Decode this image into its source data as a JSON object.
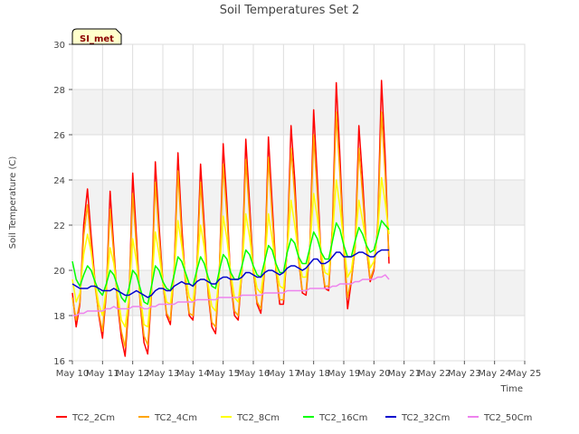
{
  "chart_data": {
    "type": "line",
    "title": "Soil Temperatures Set 2",
    "xlabel": "Time",
    "ylabel": "Soil Temperature (C)",
    "station_badge": "SI_met",
    "ylim": [
      16,
      30
    ],
    "yticks": [
      "16",
      "18",
      "20",
      "22",
      "24",
      "26",
      "28",
      "30"
    ],
    "xlim": [
      "May 10",
      "May 25"
    ],
    "xticks": [
      "May 10",
      "May 11",
      "May 12",
      "May 13",
      "May 14",
      "May 15",
      "May 16",
      "May 17",
      "May 18",
      "May 19",
      "May 20",
      "May 21",
      "May 22",
      "May 23",
      "May 24",
      "May 25"
    ],
    "grid": true,
    "legend_position": "bottom",
    "x_start_day": 10.0,
    "x_step_days": 0.125,
    "series": [
      {
        "name": "TC2_2Cm",
        "color": "#ff0000",
        "values": [
          19.0,
          17.5,
          18.5,
          22.0,
          23.6,
          21.5,
          19.5,
          18.0,
          17.0,
          19.0,
          23.5,
          21.0,
          18.5,
          17.0,
          16.2,
          18.5,
          24.3,
          21.5,
          18.5,
          16.8,
          16.3,
          19.0,
          24.8,
          22.0,
          19.5,
          18.0,
          17.6,
          20.0,
          25.2,
          22.0,
          19.5,
          18.0,
          17.8,
          20.0,
          24.7,
          22.0,
          19.0,
          17.5,
          17.2,
          20.0,
          25.6,
          23.0,
          19.5,
          18.0,
          17.8,
          20.0,
          25.8,
          23.0,
          20.0,
          18.5,
          18.1,
          20.0,
          25.9,
          23.0,
          20.0,
          18.5,
          18.5,
          21.0,
          26.4,
          24.0,
          20.5,
          19.0,
          18.9,
          21.0,
          27.1,
          24.0,
          20.5,
          19.2,
          19.1,
          22.0,
          28.3,
          25.0,
          21.0,
          18.3,
          19.5,
          21.0,
          26.4,
          24.0,
          21.0,
          19.5,
          20.0,
          22.0,
          28.4,
          25.0,
          20.3
        ]
      },
      {
        "name": "TC2_4Cm",
        "color": "#ffa500",
        "values": [
          18.8,
          17.8,
          18.6,
          21.5,
          22.9,
          21.0,
          19.3,
          18.1,
          17.3,
          19.1,
          22.7,
          20.7,
          18.6,
          17.3,
          16.6,
          18.7,
          23.4,
          21.0,
          18.6,
          17.1,
          16.7,
          19.1,
          23.9,
          21.5,
          19.5,
          18.1,
          17.8,
          20.0,
          24.4,
          21.5,
          19.5,
          18.1,
          18.0,
          20.0,
          23.9,
          21.5,
          19.1,
          17.7,
          17.5,
          20.0,
          24.7,
          22.4,
          19.6,
          18.2,
          18.0,
          20.0,
          24.9,
          22.4,
          20.0,
          18.6,
          18.3,
          20.1,
          25.0,
          22.4,
          20.0,
          18.7,
          18.7,
          21.0,
          25.4,
          23.3,
          20.5,
          19.1,
          19.1,
          21.0,
          26.0,
          23.3,
          20.5,
          19.3,
          19.3,
          21.9,
          27.0,
          24.2,
          21.0,
          18.8,
          19.6,
          21.0,
          25.4,
          23.3,
          21.0,
          19.6,
          20.1,
          21.9,
          27.0,
          24.2,
          20.6
        ]
      },
      {
        "name": "TC2_8Cm",
        "color": "#ffff00",
        "values": [
          19.6,
          18.6,
          19.0,
          20.7,
          21.6,
          20.8,
          19.5,
          18.5,
          18.0,
          19.2,
          21.0,
          20.3,
          19.0,
          17.8,
          17.5,
          18.8,
          21.4,
          20.4,
          18.9,
          17.6,
          17.5,
          19.2,
          21.7,
          20.7,
          19.5,
          18.6,
          18.5,
          19.9,
          22.2,
          21.1,
          19.8,
          18.8,
          18.6,
          20.0,
          22.0,
          21.0,
          19.4,
          18.4,
          18.2,
          19.9,
          22.4,
          21.4,
          19.9,
          18.8,
          18.6,
          20.1,
          22.5,
          21.5,
          20.1,
          19.2,
          19.0,
          20.2,
          22.5,
          21.4,
          20.2,
          19.3,
          19.2,
          20.9,
          23.1,
          22.0,
          20.7,
          19.7,
          19.7,
          21.0,
          23.4,
          22.3,
          20.8,
          19.9,
          19.8,
          21.5,
          24.0,
          22.8,
          21.2,
          19.7,
          20.0,
          21.2,
          23.1,
          22.2,
          21.2,
          20.1,
          20.4,
          21.7,
          24.1,
          23.0,
          21.6
        ]
      },
      {
        "name": "TC2_16Cm",
        "color": "#00ff00",
        "values": [
          20.4,
          19.6,
          19.3,
          19.8,
          20.2,
          20.0,
          19.5,
          19.1,
          18.9,
          19.4,
          20.0,
          19.8,
          19.3,
          18.8,
          18.6,
          19.2,
          20.0,
          19.8,
          19.2,
          18.6,
          18.5,
          19.3,
          20.2,
          20.0,
          19.5,
          19.2,
          19.1,
          19.8,
          20.6,
          20.4,
          19.9,
          19.4,
          19.3,
          20.0,
          20.6,
          20.3,
          19.7,
          19.3,
          19.2,
          20.0,
          20.7,
          20.5,
          19.9,
          19.6,
          19.6,
          20.2,
          20.9,
          20.7,
          20.2,
          19.8,
          19.7,
          20.4,
          21.1,
          20.9,
          20.3,
          19.9,
          19.9,
          20.8,
          21.4,
          21.2,
          20.6,
          20.3,
          20.3,
          21.0,
          21.7,
          21.4,
          20.8,
          20.5,
          20.5,
          21.3,
          22.1,
          21.8,
          21.1,
          20.6,
          20.6,
          21.3,
          21.9,
          21.6,
          21.1,
          20.8,
          20.9,
          21.5,
          22.2,
          22.0,
          21.8
        ]
      },
      {
        "name": "TC2_32Cm",
        "color": "#0000cd",
        "values": [
          19.4,
          19.3,
          19.2,
          19.2,
          19.2,
          19.3,
          19.3,
          19.2,
          19.1,
          19.1,
          19.1,
          19.2,
          19.1,
          19.0,
          18.9,
          18.9,
          19.0,
          19.1,
          19.0,
          18.9,
          18.8,
          18.9,
          19.1,
          19.2,
          19.2,
          19.1,
          19.1,
          19.3,
          19.4,
          19.5,
          19.4,
          19.4,
          19.3,
          19.5,
          19.6,
          19.6,
          19.5,
          19.4,
          19.4,
          19.6,
          19.7,
          19.7,
          19.6,
          19.6,
          19.6,
          19.7,
          19.9,
          19.9,
          19.8,
          19.7,
          19.7,
          19.9,
          20.0,
          20.0,
          19.9,
          19.8,
          19.9,
          20.1,
          20.2,
          20.2,
          20.1,
          20.0,
          20.1,
          20.3,
          20.5,
          20.5,
          20.3,
          20.3,
          20.4,
          20.6,
          20.8,
          20.8,
          20.6,
          20.6,
          20.6,
          20.7,
          20.8,
          20.8,
          20.7,
          20.6,
          20.6,
          20.8,
          20.9,
          20.9,
          20.9
        ]
      },
      {
        "name": "TC2_50Cm",
        "color": "#ee82ee",
        "values": [
          18.0,
          18.0,
          18.1,
          18.1,
          18.2,
          18.2,
          18.2,
          18.2,
          18.2,
          18.3,
          18.3,
          18.4,
          18.3,
          18.3,
          18.3,
          18.3,
          18.4,
          18.4,
          18.4,
          18.3,
          18.3,
          18.4,
          18.4,
          18.5,
          18.5,
          18.5,
          18.5,
          18.5,
          18.6,
          18.6,
          18.6,
          18.6,
          18.6,
          18.7,
          18.7,
          18.7,
          18.7,
          18.7,
          18.7,
          18.8,
          18.8,
          18.8,
          18.8,
          18.8,
          18.8,
          18.9,
          18.9,
          18.9,
          18.9,
          18.9,
          18.9,
          19.0,
          19.0,
          19.0,
          19.0,
          19.0,
          19.0,
          19.1,
          19.1,
          19.1,
          19.1,
          19.1,
          19.1,
          19.2,
          19.2,
          19.2,
          19.2,
          19.2,
          19.2,
          19.3,
          19.3,
          19.4,
          19.4,
          19.4,
          19.4,
          19.5,
          19.5,
          19.6,
          19.6,
          19.6,
          19.6,
          19.7,
          19.7,
          19.8,
          19.6
        ]
      }
    ]
  }
}
